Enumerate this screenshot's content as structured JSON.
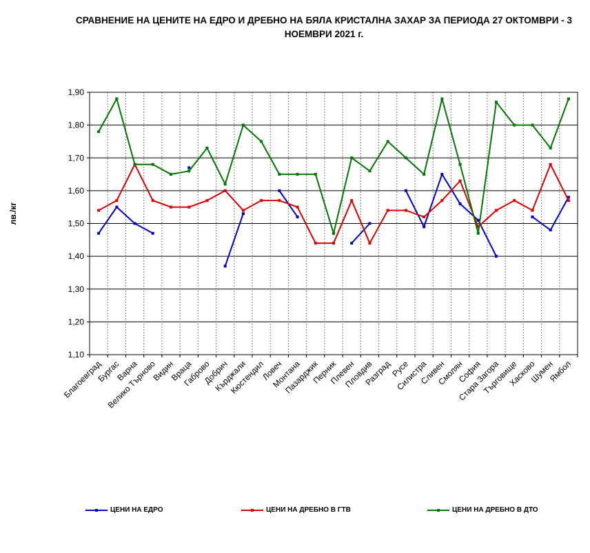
{
  "chart_data": {
    "type": "line",
    "title": "СРАВНЕНИЕ НА ЦЕНИТЕ НА ЕДРО И ДРЕБНО НА БЯЛА КРИСТАЛНА ЗАХАР ЗА ПЕРИОДА 27 ОКТОМВРИ - 3 НОЕМВРИ 2021 г.",
    "ylabel": "лв./кг",
    "xlabel": "",
    "ylim": [
      1.1,
      1.9
    ],
    "yticks": [
      "1,10",
      "1,20",
      "1,30",
      "1,40",
      "1,50",
      "1,60",
      "1,70",
      "1,80",
      "1,90"
    ],
    "grid": true,
    "legend_position": "bottom",
    "categories": [
      "Благоевград",
      "Бургас",
      "Варна",
      "Велико Търново",
      "Видин",
      "Враца",
      "Габрово",
      "Добрич",
      "Кърджали",
      "Кюстендил",
      "Ловеч",
      "Монтана",
      "Пазарджик",
      "Перник",
      "Плевен",
      "Пловдив",
      "Разград",
      "Русе",
      "Силистра",
      "Сливен",
      "Смолян",
      "София",
      "Стара Загора",
      "Търговище",
      "Хасково",
      "Шумен",
      "Ямбол"
    ],
    "series": [
      {
        "name": "ЦЕНИ НА ЕДРО",
        "color": "#0000CC",
        "values": [
          1.47,
          1.55,
          1.5,
          1.47,
          null,
          1.67,
          null,
          1.37,
          1.53,
          null,
          1.6,
          1.52,
          null,
          null,
          1.44,
          1.5,
          null,
          1.6,
          1.49,
          1.65,
          1.56,
          1.51,
          1.4,
          null,
          1.52,
          1.48,
          1.58
        ]
      },
      {
        "name": "ЦЕНИ НА ДРЕБНО В ГТВ",
        "color": "#DD0000",
        "values": [
          1.54,
          1.57,
          1.68,
          1.57,
          1.55,
          1.55,
          1.57,
          1.6,
          1.54,
          1.57,
          1.57,
          1.55,
          1.44,
          1.44,
          1.57,
          1.44,
          1.54,
          1.54,
          1.52,
          1.57,
          1.63,
          1.49,
          1.54,
          1.57,
          1.54,
          1.68,
          1.57
        ]
      },
      {
        "name": "ЦЕНИ НА ДРЕБНО В ДТО",
        "color": "#007700",
        "values": [
          1.78,
          1.88,
          1.68,
          1.68,
          1.65,
          1.66,
          1.73,
          1.62,
          1.8,
          1.75,
          1.65,
          1.65,
          1.65,
          1.47,
          1.7,
          1.66,
          1.75,
          1.7,
          1.65,
          1.88,
          1.68,
          1.47,
          1.87,
          1.8,
          1.8,
          1.73,
          1.88
        ]
      }
    ]
  }
}
